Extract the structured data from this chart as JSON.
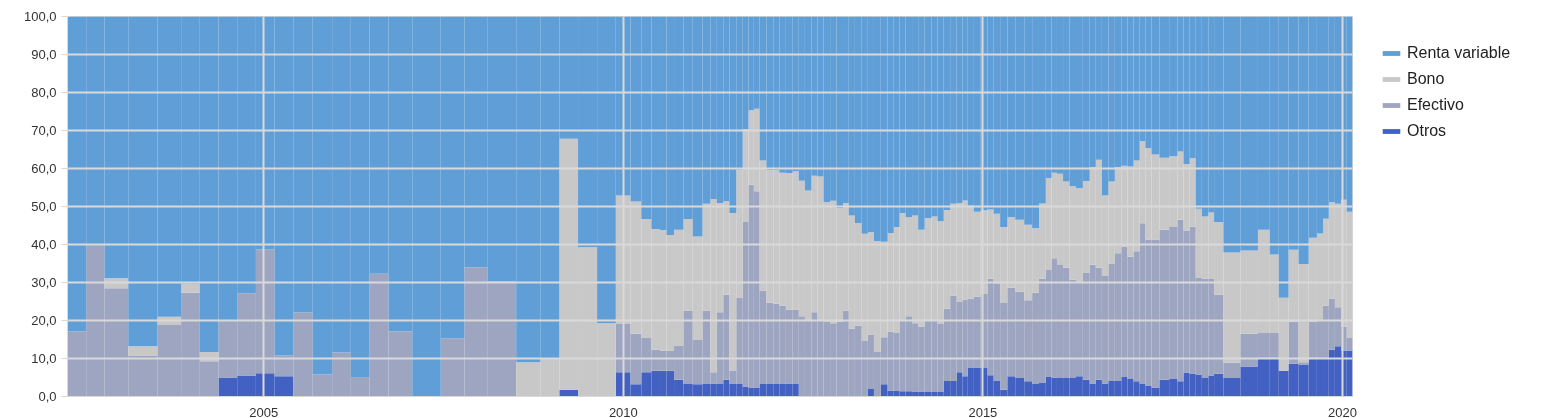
{
  "chart_data": {
    "type": "bar",
    "stacked": true,
    "x": [
      2002.4,
      2002.66,
      2002.91,
      2003.32,
      2003.72,
      2003.98,
      2004.24,
      2004.5,
      2004.76,
      2005.02,
      2005.28,
      2005.54,
      2005.82,
      2006.08,
      2006.34,
      2006.6,
      2006.87,
      2007.26,
      2007.66,
      2007.92,
      2008.31,
      2008.71,
      2008.98,
      2009.24,
      2009.5,
      2009.77,
      2010.02,
      2010.18,
      2010.32,
      2010.46,
      2010.56,
      2010.64,
      2010.77,
      2010.9,
      2011.03,
      2011.17,
      2011.25,
      2011.35,
      2011.43,
      2011.52,
      2011.62,
      2011.7,
      2011.78,
      2011.85,
      2011.94,
      2012.04,
      2012.13,
      2012.21,
      2012.31,
      2012.4,
      2012.48,
      2012.57,
      2012.66,
      2012.74,
      2012.83,
      2012.92,
      2013.01,
      2013.1,
      2013.17,
      2013.27,
      2013.36,
      2013.44,
      2013.53,
      2013.63,
      2013.72,
      2013.8,
      2013.88,
      2013.97,
      2014.06,
      2014.14,
      2014.24,
      2014.33,
      2014.41,
      2014.5,
      2014.59,
      2014.68,
      2014.75,
      2014.83,
      2014.92,
      2015.02,
      2015.11,
      2015.19,
      2015.29,
      2015.39,
      2015.51,
      2015.64,
      2015.73,
      2015.83,
      2015.92,
      2015.99,
      2016.07,
      2016.16,
      2016.25,
      2016.34,
      2016.44,
      2016.53,
      2016.61,
      2016.7,
      2016.79,
      2016.88,
      2016.97,
      2017.05,
      2017.14,
      2017.22,
      2017.3,
      2017.39,
      2017.52,
      2017.66,
      2017.75,
      2017.83,
      2017.92,
      2018.0,
      2018.09,
      2018.18,
      2018.25,
      2018.44,
      2018.72,
      2018.93,
      2019.05,
      2019.18,
      2019.32,
      2019.46,
      2019.6,
      2019.69,
      2019.77,
      2019.85,
      2019.94,
      2020.02,
      2020.1
    ],
    "series": [
      {
        "name": "Otros",
        "color": "#4361c2",
        "values": [
          0,
          0,
          0,
          0,
          0,
          0,
          0,
          5.0,
          5.5,
          6.1,
          5.3,
          0,
          0,
          0,
          0,
          0,
          0,
          0,
          0,
          0,
          0,
          0,
          0,
          1.8,
          0,
          0,
          6.4,
          3.2,
          6.4,
          6.8,
          6.8,
          6.8,
          4.4,
          3.3,
          3.2,
          3.3,
          3.4,
          3.3,
          4.4,
          3.3,
          3.3,
          2.6,
          2.4,
          2.4,
          3.3,
          3.3,
          3.3,
          3.3,
          3.4,
          3.3,
          0,
          0,
          0,
          0,
          0,
          0,
          0,
          0,
          0,
          0,
          0,
          2.0,
          0,
          3.2,
          1.6,
          1.6,
          1.4,
          1.4,
          1.3,
          1.3,
          1.2,
          1.2,
          1.2,
          4.1,
          4.1,
          6.4,
          5.3,
          7.5,
          7.6,
          7.5,
          5.6,
          4.1,
          1.8,
          5.3,
          4.9,
          4.0,
          3.3,
          3.7,
          5.1,
          5.0,
          4.9,
          4.9,
          4.9,
          5.3,
          4.4,
          3.4,
          4.4,
          3.4,
          4.1,
          4.1,
          5.1,
          4.6,
          4.0,
          3.3,
          2.9,
          2.4,
          4.4,
          4.6,
          4.0,
          6.3,
          5.9,
          5.8,
          4.9,
          5.5,
          6.0,
          4.9,
          7.9,
          10.2,
          10.2,
          6.8,
          8.6,
          8.4,
          10.2,
          10.2,
          10.2,
          12.3,
          13.2,
          12.1,
          12.1
        ]
      },
      {
        "name": "Efectivo",
        "color": "#9ea5c0",
        "values": [
          17.1,
          39.7,
          28.5,
          10.8,
          18.8,
          27.3,
          9.3,
          14.7,
          21.7,
          32.6,
          5.5,
          22.1,
          5.8,
          11.6,
          5.1,
          32.3,
          17.1,
          0,
          15.3,
          34.0,
          30.3,
          0,
          0,
          0,
          0,
          0,
          12.7,
          13.3,
          9.0,
          5.5,
          5.3,
          5.3,
          9.0,
          19.3,
          11.7,
          19.3,
          3.0,
          18.9,
          22.4,
          3.4,
          22.6,
          43.3,
          53.3,
          51.6,
          24.6,
          21.4,
          21.1,
          20.6,
          19.5,
          19.6,
          21.1,
          20.2,
          22.2,
          20.2,
          19.8,
          19.3,
          19.7,
          22.6,
          17.8,
          18.6,
          14.6,
          14.3,
          11.7,
          12.4,
          15.5,
          15.1,
          18.6,
          19.7,
          18.0,
          17.1,
          19.0,
          18.8,
          17.9,
          19.0,
          22.5,
          18.5,
          20.2,
          18.3,
          18.7,
          19.5,
          25.4,
          25.7,
          22.8,
          23.3,
          22.7,
          21.3,
          24.0,
          27.3,
          28.2,
          31.4,
          29.7,
          29.0,
          25.8,
          24.6,
          28.1,
          31.3,
          29.5,
          28.3,
          30.9,
          33.6,
          34.4,
          32.2,
          34.2,
          42.3,
          38.4,
          38.9,
          39.5,
          40.0,
          42.5,
          37.4,
          38.8,
          25.4,
          26.1,
          25.4,
          20.8,
          4.0,
          8.6,
          6.5,
          6.5,
          0,
          11.1,
          0.6,
          9.5,
          9.8,
          13.7,
          13.5,
          10.3,
          6.3,
          3.3
        ]
      },
      {
        "name": "Bono",
        "color": "#c8c8c8",
        "values": [
          0,
          0,
          2.6,
          2.4,
          2.2,
          2.4,
          2.4,
          0,
          0,
          0,
          0,
          0,
          0,
          0,
          0,
          0,
          0,
          0,
          0,
          0,
          0,
          9.0,
          10.1,
          66.0,
          39.3,
          19.3,
          33.8,
          34.8,
          31.3,
          31.8,
          31.7,
          30.4,
          30.5,
          24.1,
          27.2,
          28.1,
          45.6,
          28.7,
          24.6,
          41.6,
          33.8,
          24.5,
          19.6,
          21.7,
          34.2,
          34.9,
          35.2,
          35.0,
          35.9,
          36.4,
          35.7,
          34.0,
          35.9,
          37.7,
          31.3,
          32.2,
          29.9,
          28.3,
          29.8,
          27.0,
          28.2,
          26.9,
          29.2,
          25.1,
          25.9,
          27.9,
          28.3,
          26.1,
          28.3,
          25.5,
          26.8,
          27.4,
          27.0,
          26.0,
          24.1,
          26.0,
          26.1,
          24.4,
          22.3,
          22.0,
          18.2,
          18.3,
          20.0,
          18.6,
          18.9,
          19.9,
          17.0,
          19.8,
          24.2,
          22.5,
          24.0,
          22.7,
          24.6,
          24.9,
          24.2,
          25.7,
          28.4,
          21.2,
          21.6,
          22.7,
          21.2,
          23.7,
          23.9,
          21.6,
          24.0,
          22.4,
          18.9,
          18.6,
          18.0,
          17.5,
          18.0,
          18.2,
          16.4,
          17.5,
          19.1,
          29.0,
          21.9,
          27.2,
          20.7,
          19.2,
          18.9,
          25.9,
          22.1,
          22.9,
          22.9,
          25.3,
          27.2,
          33.4,
          33.2
        ]
      },
      {
        "name": "Renta variable",
        "color": "#5f9ed6",
        "values": [
          82.9,
          60.3,
          68.9,
          86.8,
          79.0,
          70.3,
          88.3,
          80.3,
          72.8,
          61.3,
          89.2,
          77.9,
          94.2,
          88.4,
          94.9,
          67.7,
          82.9,
          100,
          84.7,
          66.0,
          69.7,
          91.0,
          89.9,
          32.2,
          60.7,
          80.7,
          47.1,
          48.7,
          53.3,
          55.9,
          56.2,
          57.5,
          56.1,
          53.3,
          57.9,
          49.3,
          48.0,
          49.1,
          48.6,
          51.7,
          40.3,
          29.6,
          24.7,
          24.3,
          37.9,
          40.4,
          40.4,
          41.1,
          41.2,
          40.7,
          43.2,
          45.8,
          41.9,
          42.1,
          48.9,
          48.5,
          50.4,
          49.1,
          52.4,
          54.4,
          57.2,
          56.8,
          59.1,
          59.3,
          57.0,
          55.4,
          51.7,
          52.8,
          52.4,
          56.1,
          53.0,
          52.6,
          53.9,
          50.9,
          49.3,
          49.1,
          48.4,
          49.8,
          51.4,
          51.0,
          50.8,
          51.9,
          55.4,
          52.8,
          53.5,
          54.8,
          55.7,
          49.2,
          42.5,
          41.1,
          41.4,
          43.4,
          44.7,
          45.2,
          43.3,
          39.6,
          37.7,
          47.1,
          43.4,
          39.6,
          39.3,
          39.5,
          37.9,
          32.8,
          34.7,
          36.3,
          37.2,
          36.8,
          35.5,
          38.8,
          37.3,
          50.6,
          52.6,
          51.6,
          54.1,
          62.1,
          61.6,
          56.1,
          62.6,
          74.0,
          61.4,
          65.1,
          58.2,
          57.1,
          53.2,
          48.9,
          49.3,
          48.2,
          51.4
        ]
      }
    ],
    "xlim": [
      2002.27,
      2020.14
    ],
    "xticks": [
      2005,
      2010,
      2015,
      2020
    ],
    "ylim": [
      0,
      100
    ],
    "yticks": [
      {
        "value": 0,
        "label": "0,0"
      },
      {
        "value": 10,
        "label": "10,0"
      },
      {
        "value": 20,
        "label": "20,0"
      },
      {
        "value": 30,
        "label": "30,0"
      },
      {
        "value": 40,
        "label": "40,0"
      },
      {
        "value": 50,
        "label": "50,0"
      },
      {
        "value": 60,
        "label": "60,0"
      },
      {
        "value": 70,
        "label": "70,0"
      },
      {
        "value": 80,
        "label": "80,0"
      },
      {
        "value": 90,
        "label": "90,0"
      },
      {
        "value": 100,
        "label": "100,0"
      }
    ],
    "grid": true,
    "legend": "top right"
  }
}
